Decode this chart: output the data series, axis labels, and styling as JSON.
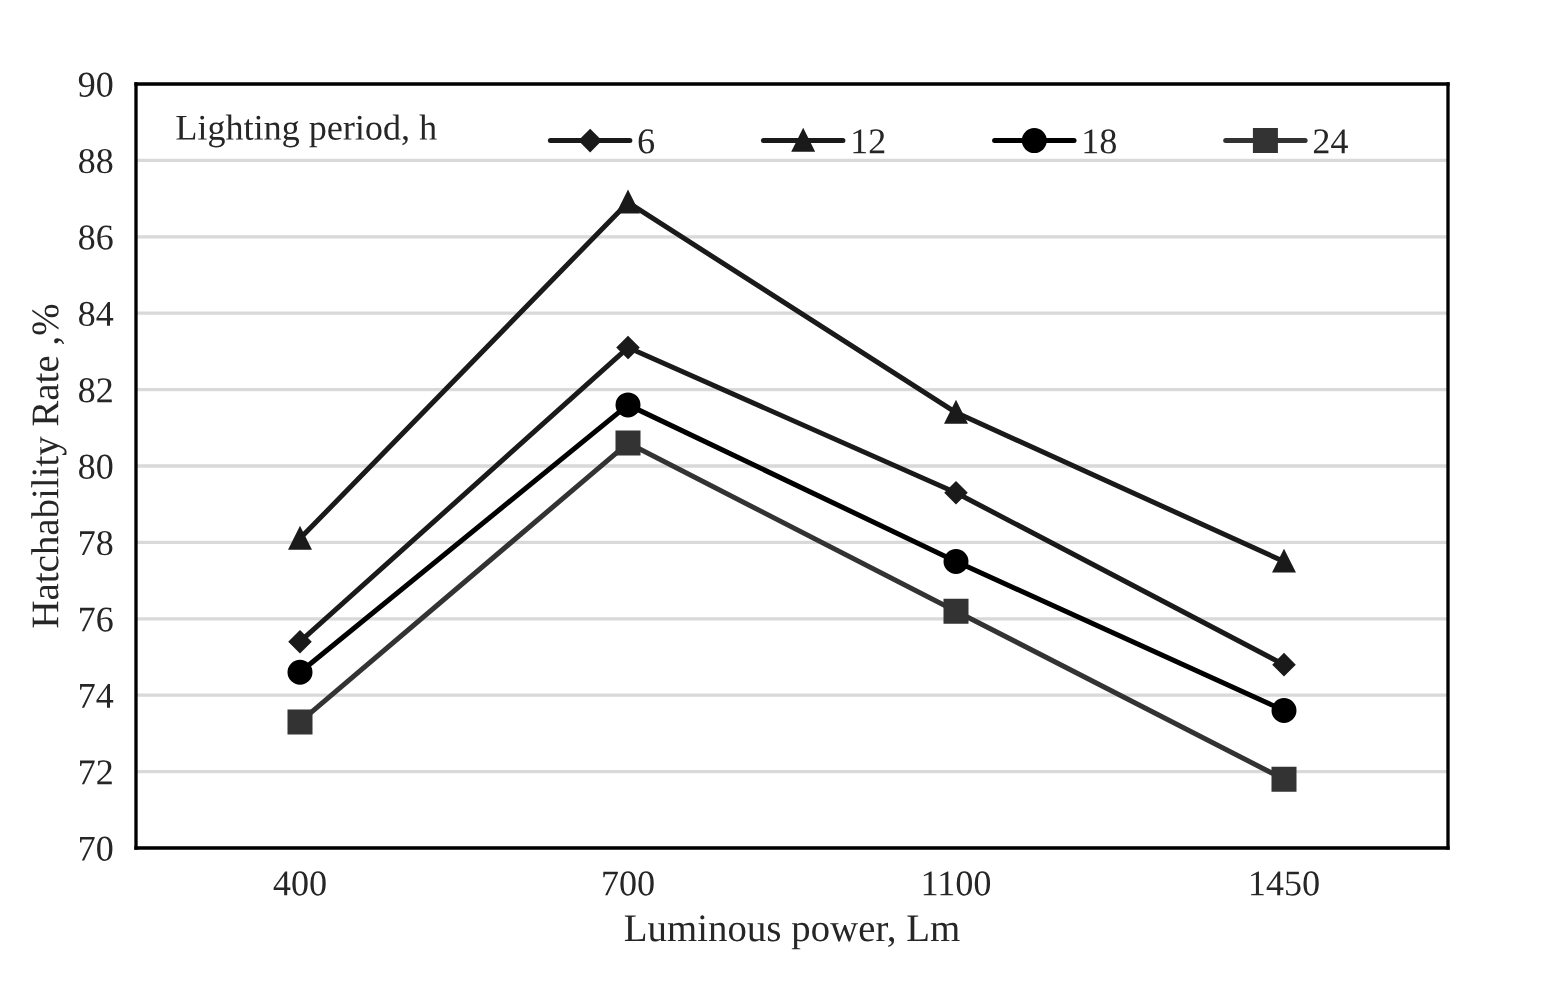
{
  "chart_data": {
    "type": "line",
    "xlabel": "Luminous power, Lm",
    "ylabel": "Hatchability Rate ,%",
    "legend_title": "Lighting period, h",
    "categories": [
      "400",
      "700",
      "1100",
      "1450"
    ],
    "series": [
      {
        "name": "6",
        "color": "#1a1a1a",
        "marker": "diamond",
        "values": [
          75.4,
          83.1,
          79.3,
          74.8
        ]
      },
      {
        "name": "12",
        "color": "#1a1a1a",
        "marker": "triangle",
        "values": [
          78.1,
          86.9,
          81.4,
          77.5
        ]
      },
      {
        "name": "18",
        "color": "#000000",
        "marker": "circle",
        "values": [
          74.6,
          81.6,
          77.5,
          73.6
        ]
      },
      {
        "name": "24",
        "color": "#333333",
        "marker": "square",
        "values": [
          73.3,
          80.6,
          76.2,
          71.8
        ]
      }
    ],
    "ylim": [
      70,
      90
    ],
    "yticks": [
      70,
      72,
      74,
      76,
      78,
      80,
      82,
      84,
      86,
      88,
      90
    ],
    "grid": "y",
    "legend": "top",
    "line_style": "solid"
  }
}
